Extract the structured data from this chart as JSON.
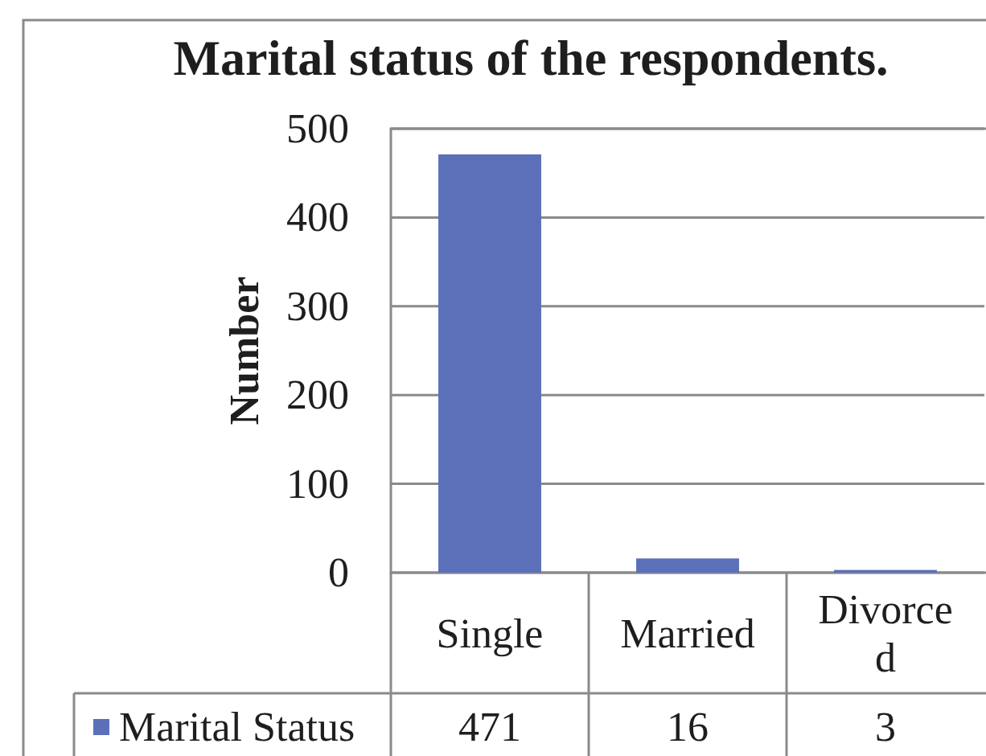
{
  "chart_data": {
    "type": "bar",
    "title": "Marital status of the respondents.",
    "ylabel": "Number",
    "categories": [
      "Single",
      "Married",
      "Divorced"
    ],
    "series": [
      {
        "name": "Marital Status",
        "color": "#5b70b8",
        "values": [
          471,
          16,
          3
        ]
      }
    ],
    "ylim": [
      0,
      500
    ],
    "yticks": [
      0,
      100,
      200,
      300,
      400,
      500
    ],
    "grid": "y",
    "legend": "bottom",
    "data_labels": true
  }
}
